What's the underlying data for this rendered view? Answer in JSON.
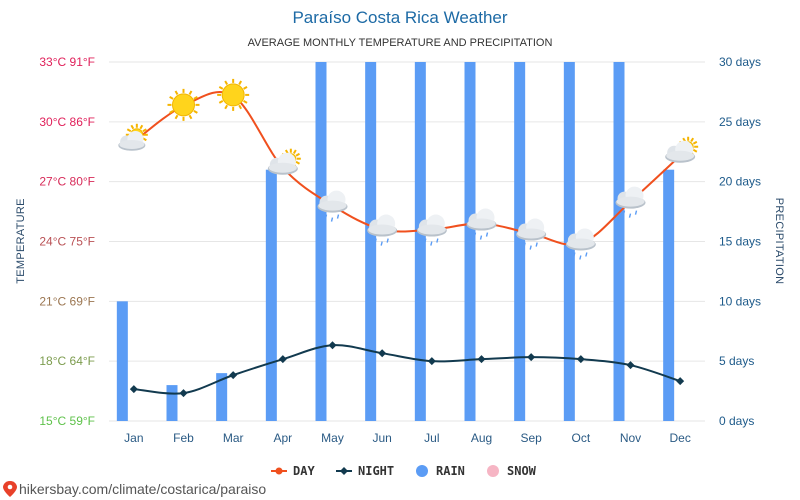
{
  "chart_data": {
    "type": "line",
    "title": "Paraíso Costa Rica Weather",
    "subtitle": "AVERAGE MONTHLY TEMPERATURE AND PRECIPITATION",
    "categories": [
      "Jan",
      "Feb",
      "Mar",
      "Apr",
      "May",
      "Jun",
      "Jul",
      "Aug",
      "Sep",
      "Oct",
      "Nov",
      "Dec"
    ],
    "series": [
      {
        "name": "DAY",
        "type": "line",
        "axis": "left",
        "color": "#f0501e",
        "values": [
          29.0,
          30.8,
          31.3,
          27.7,
          25.8,
          24.6,
          24.6,
          24.9,
          24.4,
          23.9,
          26.0,
          28.3
        ]
      },
      {
        "name": "NIGHT",
        "type": "line",
        "axis": "left",
        "color": "#123a4f",
        "values": [
          16.6,
          16.4,
          17.3,
          18.1,
          18.8,
          18.4,
          18.0,
          18.1,
          18.2,
          18.1,
          17.8,
          17.0
        ]
      },
      {
        "name": "RAIN",
        "type": "bar",
        "axis": "right",
        "color": "#5b9cf5",
        "values": [
          10,
          3,
          4,
          21,
          30,
          30,
          30,
          30,
          30,
          30,
          30,
          21
        ]
      },
      {
        "name": "SNOW",
        "type": "bar",
        "axis": "right",
        "color": "#f6b5c4",
        "values": [
          0,
          0,
          0,
          0,
          0,
          0,
          0,
          0,
          0,
          0,
          0,
          0
        ]
      }
    ],
    "weather_icons": [
      "partly-sunny-icon",
      "sun-icon",
      "sun-icon",
      "partly-cloudy-icon",
      "rain-icon",
      "rain-icon",
      "rain-icon",
      "rain-icon",
      "rain-icon",
      "rain-icon",
      "rain-icon",
      "partly-cloudy-icon"
    ],
    "y_left": {
      "label": "TEMPERATURE",
      "range": [
        15,
        33
      ],
      "ticks": [
        {
          "value": 33,
          "text": "33°C 91°F"
        },
        {
          "value": 30,
          "text": "30°C 86°F"
        },
        {
          "value": 27,
          "text": "27°C 80°F"
        },
        {
          "value": 24,
          "text": "24°C 75°F"
        },
        {
          "value": 21,
          "text": "21°C 69°F"
        },
        {
          "value": 18,
          "text": "18°C 64°F"
        },
        {
          "value": 15,
          "text": "15°C 59°F"
        }
      ]
    },
    "y_right": {
      "label": "PRECIPITATION",
      "range": [
        0,
        30
      ],
      "ticks": [
        {
          "value": 30,
          "text": "30 days"
        },
        {
          "value": 25,
          "text": "25 days"
        },
        {
          "value": 20,
          "text": "20 days"
        },
        {
          "value": 15,
          "text": "15 days"
        },
        {
          "value": 10,
          "text": "10 days"
        },
        {
          "value": 5,
          "text": "5 days"
        },
        {
          "value": 0,
          "text": "0 days"
        }
      ]
    },
    "grid": true,
    "legend_position": "bottom",
    "colors": {
      "tick_cold": "#5ec24a",
      "tick_hot": "#e0205a",
      "grid": "#e6e6e6"
    }
  },
  "legend": [
    {
      "label": "DAY",
      "color": "#f0501e"
    },
    {
      "label": "NIGHT",
      "color": "#123a4f"
    },
    {
      "label": "RAIN",
      "color": "#5b9cf5"
    },
    {
      "label": "SNOW",
      "color": "#f6b5c4"
    }
  ],
  "footer": {
    "text": "hikersbay.com/climate/costarica/paraiso",
    "icon": "location-pin-icon",
    "icon_color": "#e8412a"
  }
}
